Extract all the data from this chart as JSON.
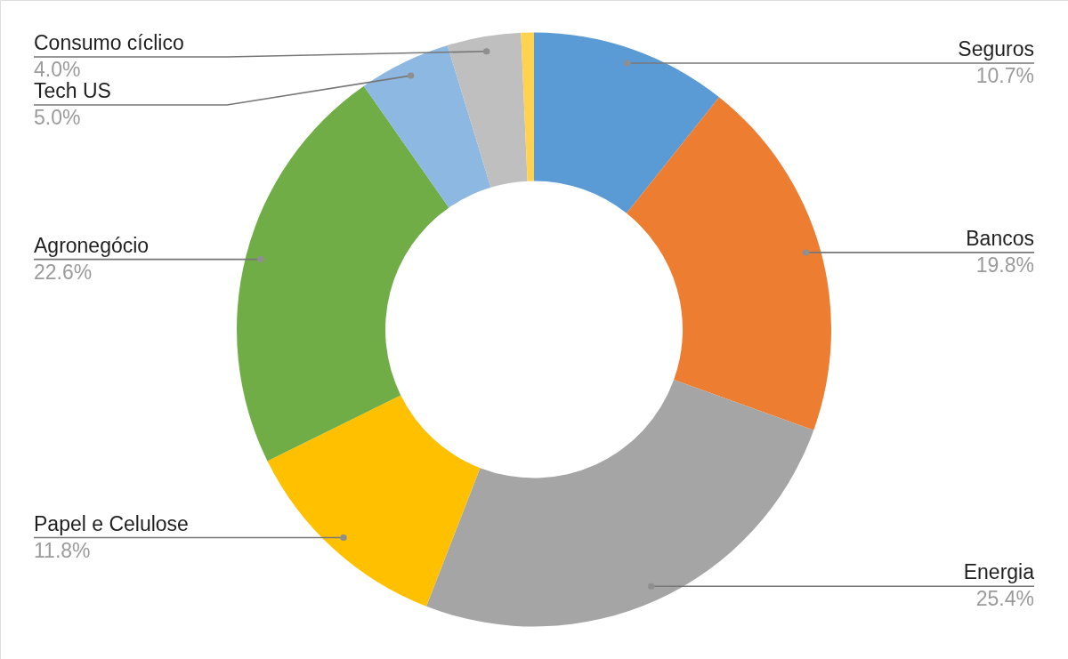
{
  "chart_data": {
    "type": "donut",
    "categories": [
      "Seguros",
      "Bancos",
      "Energia",
      "Papel e Celulose",
      "Agronegócio",
      "Tech US",
      "Consumo cíclico",
      null
    ],
    "values": [
      10.7,
      19.8,
      25.4,
      11.8,
      22.6,
      5.0,
      4.0,
      0.7
    ],
    "colors": [
      "#5b9bd5",
      "#ed7d31",
      "#a5a5a5",
      "#ffc000",
      "#70ad47",
      "#8db8e2",
      "#bfbfbf",
      "#ffd34f"
    ],
    "value_labels": [
      "10.7%",
      "19.8%",
      "25.4%",
      "11.8%",
      "22.6%",
      "5.0%",
      "4.0%",
      null
    ]
  }
}
